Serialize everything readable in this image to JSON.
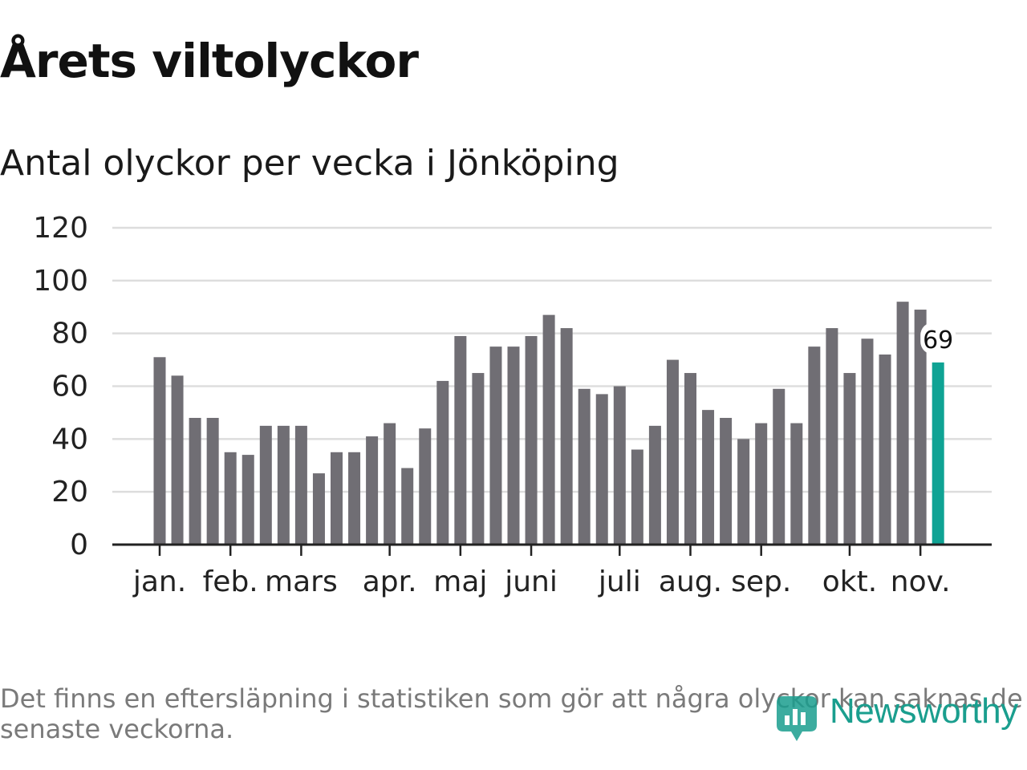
{
  "header": {
    "title": "Årets viltolyckor",
    "subtitle": "Antal olyckor per vecka i Jönköping"
  },
  "footnote": "Det finns en eftersläpning i statistiken som gör att några olyckor kan saknas de senaste veckorna.",
  "brand": {
    "name": "Newsworthy",
    "icon": "newsworthy-logo-icon"
  },
  "colors": {
    "bar": "#706e74",
    "highlight": "#0fa394",
    "grid": "#dddddd",
    "axis": "#222222",
    "brand": "#1a9e8e"
  },
  "chart_data": {
    "type": "bar",
    "title": "Antal olyckor per vecka i Jönköping",
    "xlabel": "",
    "ylabel": "",
    "ylim": [
      0,
      120
    ],
    "yticks": [
      0,
      20,
      40,
      60,
      80,
      100,
      120
    ],
    "grid": true,
    "values": [
      71,
      64,
      48,
      48,
      35,
      34,
      45,
      45,
      45,
      27,
      35,
      35,
      41,
      46,
      29,
      44,
      62,
      79,
      65,
      75,
      75,
      79,
      87,
      82,
      59,
      57,
      60,
      36,
      45,
      70,
      65,
      51,
      48,
      40,
      46,
      59,
      46,
      75,
      82,
      65,
      78,
      72,
      92,
      89,
      69
    ],
    "highlight": {
      "index": 44,
      "label": "69"
    },
    "month_labels": [
      {
        "label": "jan.",
        "bar": 0.5
      },
      {
        "label": "feb.",
        "bar": 4.5
      },
      {
        "label": "mars",
        "bar": 8.5
      },
      {
        "label": "apr.",
        "bar": 13.5
      },
      {
        "label": "maj",
        "bar": 17.5
      },
      {
        "label": "juni",
        "bar": 21.5
      },
      {
        "label": "juli",
        "bar": 26.5
      },
      {
        "label": "aug.",
        "bar": 30.5
      },
      {
        "label": "sep.",
        "bar": 34.5
      },
      {
        "label": "okt.",
        "bar": 39.5
      },
      {
        "label": "nov.",
        "bar": 43.5
      }
    ]
  }
}
